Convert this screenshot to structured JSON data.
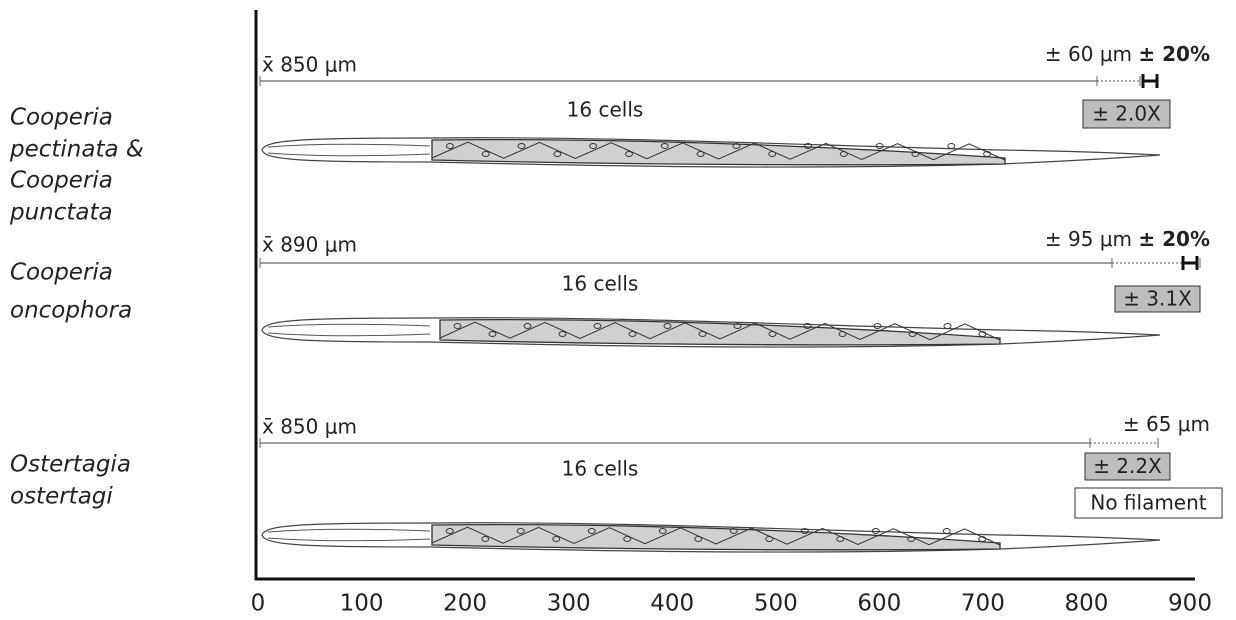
{
  "axis": {
    "ticks": [
      0,
      100,
      200,
      300,
      400,
      500,
      600,
      700,
      800,
      900
    ]
  },
  "rows": [
    {
      "species": [
        "Cooperia",
        "pectinata &",
        "Cooperia",
        "punctata"
      ],
      "mean": "x̄ 850 μm",
      "deviation": "± 60 μm",
      "percent": "± 20%",
      "cells": "16 cells",
      "ratio": "± 2.0X"
    },
    {
      "species": [
        "Cooperia",
        "oncophora"
      ],
      "mean": "x̄ 890 μm",
      "deviation": "± 95 μm",
      "percent": "± 20%",
      "cells": "16 cells",
      "ratio": "± 3.1X"
    },
    {
      "species": [
        "Ostertagia",
        "ostertagi"
      ],
      "mean": "x̄ 850 μm",
      "deviation": "± 65 μm",
      "cells": "16 cells",
      "ratio": "± 2.2X",
      "note": "No filament"
    }
  ]
}
